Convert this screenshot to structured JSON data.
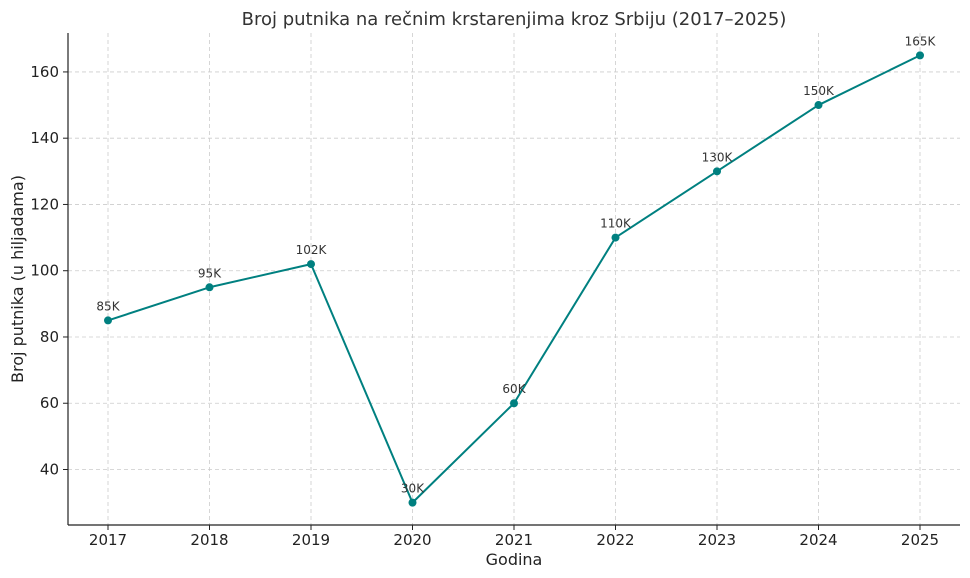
{
  "chart_data": {
    "type": "line",
    "title": "Broj putnika na rečnim krstarenjima kroz Srbiju (2017–2025)",
    "xlabel": "Godina",
    "ylabel": "Broj putnika (u hiljadama)",
    "x": [
      "2017",
      "2018",
      "2019",
      "2020",
      "2021",
      "2022",
      "2023",
      "2024",
      "2025"
    ],
    "series": [
      {
        "values": [
          85,
          95,
          102,
          30,
          60,
          110,
          130,
          150,
          165
        ],
        "data_labels": [
          "85K",
          "95K",
          "102K",
          "30K",
          "60K",
          "110K",
          "130K",
          "150K",
          "165K"
        ],
        "color": "#008080"
      }
    ],
    "ylim": [
      23.25,
      171.75
    ],
    "yticks": [
      40,
      60,
      80,
      100,
      120,
      140,
      160
    ],
    "grid": true,
    "legend": "none"
  }
}
